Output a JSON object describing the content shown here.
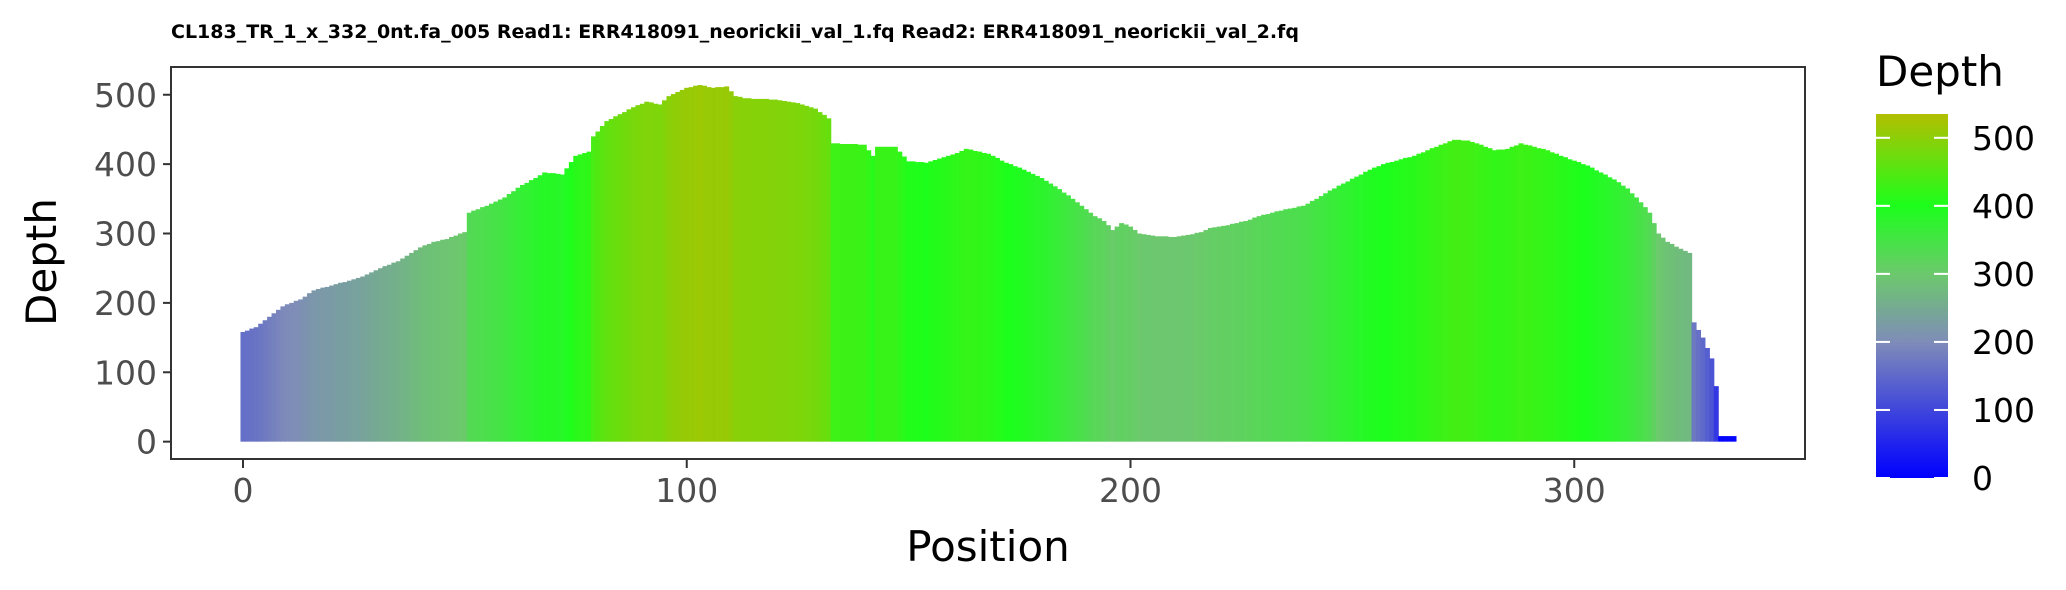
{
  "chart_data": {
    "type": "bar",
    "title": "CL183_TR_1_x_332_0nt.fa_005 Read1: ERR418091_neorickii_val_1.fq Read2: ERR418091_neorickii_val_2.fq",
    "xlabel": "Position",
    "ylabel": "Depth",
    "xlim": [
      -16,
      352
    ],
    "ylim": [
      -25,
      540
    ],
    "x_ticks": [
      0,
      100,
      200,
      300
    ],
    "y_ticks": [
      0,
      100,
      200,
      300,
      400,
      500
    ],
    "grid": false,
    "fill_scale": {
      "title": "Depth",
      "min": 0,
      "max": 535,
      "stops": [
        {
          "value": 0,
          "color": "#0000ff"
        },
        {
          "value": 200,
          "color": "#7f8cb8"
        },
        {
          "value": 300,
          "color": "#6cc96c"
        },
        {
          "value": 400,
          "color": "#1cff1c"
        },
        {
          "value": 535,
          "color": "#b3be00"
        }
      ],
      "breaks": [
        0,
        100,
        200,
        300,
        400,
        500
      ]
    },
    "profile_points": [
      [
        0,
        158
      ],
      [
        3,
        165
      ],
      [
        6,
        180
      ],
      [
        9,
        195
      ],
      [
        13,
        205
      ],
      [
        16,
        218
      ],
      [
        20,
        225
      ],
      [
        24,
        232
      ],
      [
        27,
        238
      ],
      [
        31,
        250
      ],
      [
        35,
        260
      ],
      [
        38,
        272
      ],
      [
        40,
        280
      ],
      [
        43,
        288
      ],
      [
        46,
        292
      ],
      [
        50,
        302
      ],
      [
        51,
        330
      ],
      [
        55,
        340
      ],
      [
        59,
        352
      ],
      [
        63,
        370
      ],
      [
        66,
        380
      ],
      [
        68,
        388
      ],
      [
        72,
        385
      ],
      [
        75,
        412
      ],
      [
        78,
        418
      ],
      [
        79,
        440
      ],
      [
        82,
        462
      ],
      [
        85,
        472
      ],
      [
        88,
        482
      ],
      [
        91,
        490
      ],
      [
        94,
        486
      ],
      [
        96,
        498
      ],
      [
        100,
        510
      ],
      [
        103,
        514
      ],
      [
        106,
        510
      ],
      [
        109,
        512
      ],
      [
        111,
        498
      ],
      [
        113,
        495
      ],
      [
        120,
        493
      ],
      [
        125,
        488
      ],
      [
        129,
        480
      ],
      [
        132,
        466
      ],
      [
        133,
        430
      ],
      [
        140,
        428
      ],
      [
        142,
        412
      ],
      [
        143,
        425
      ],
      [
        147,
        425
      ],
      [
        150,
        404
      ],
      [
        154,
        402
      ],
      [
        158,
        410
      ],
      [
        161,
        416
      ],
      [
        163,
        422
      ],
      [
        168,
        415
      ],
      [
        172,
        402
      ],
      [
        176,
        392
      ],
      [
        180,
        380
      ],
      [
        183,
        368
      ],
      [
        186,
        355
      ],
      [
        189,
        340
      ],
      [
        192,
        325
      ],
      [
        194,
        318
      ],
      [
        196,
        305
      ],
      [
        198,
        315
      ],
      [
        200,
        310
      ],
      [
        202,
        300
      ],
      [
        206,
        296
      ],
      [
        210,
        295
      ],
      [
        213,
        298
      ],
      [
        216,
        302
      ],
      [
        218,
        308
      ],
      [
        222,
        312
      ],
      [
        226,
        318
      ],
      [
        229,
        325
      ],
      [
        232,
        330
      ],
      [
        236,
        336
      ],
      [
        239,
        340
      ],
      [
        242,
        350
      ],
      [
        245,
        362
      ],
      [
        248,
        372
      ],
      [
        251,
        382
      ],
      [
        254,
        392
      ],
      [
        257,
        400
      ],
      [
        260,
        405
      ],
      [
        264,
        412
      ],
      [
        267,
        420
      ],
      [
        270,
        428
      ],
      [
        273,
        435
      ],
      [
        276,
        434
      ],
      [
        279,
        428
      ],
      [
        282,
        420
      ],
      [
        285,
        422
      ],
      [
        288,
        430
      ],
      [
        291,
        425
      ],
      [
        294,
        420
      ],
      [
        297,
        412
      ],
      [
        300,
        405
      ],
      [
        303,
        398
      ],
      [
        306,
        388
      ],
      [
        309,
        378
      ],
      [
        312,
        365
      ],
      [
        315,
        345
      ],
      [
        317,
        330
      ],
      [
        319,
        300
      ],
      [
        321,
        288
      ],
      [
        324,
        278
      ],
      [
        326,
        272
      ],
      [
        327,
        172
      ],
      [
        329,
        150
      ],
      [
        331,
        120
      ],
      [
        332,
        80
      ],
      [
        333,
        8
      ],
      [
        336,
        8
      ]
    ]
  }
}
